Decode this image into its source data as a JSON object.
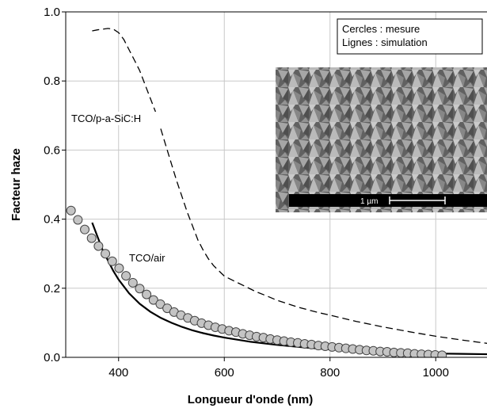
{
  "chart_data": {
    "type": "line",
    "xlabel": "Longueur d'onde (nm)",
    "ylabel": "Facteur haze",
    "xlim": [
      300,
      1100
    ],
    "ylim": [
      0,
      1.0
    ],
    "x_ticks": [
      400,
      600,
      800,
      1000
    ],
    "y_ticks": [
      0.0,
      0.2,
      0.4,
      0.6,
      0.8,
      1.0
    ],
    "x_tick_labels": [
      "400",
      "600",
      "800",
      "1000"
    ],
    "y_tick_labels": [
      "0.0",
      "0.2",
      "0.4",
      "0.6",
      "0.8",
      "1.0"
    ],
    "grid": true,
    "legend": {
      "placement": "top-right",
      "lines": [
        "Cercles : mesure",
        "Lignes : simulation"
      ]
    },
    "annotations": [
      "TCO/p-a-SiC:H",
      "TCO/air"
    ],
    "inset": {
      "type": "SEM micrograph",
      "scale_bar": "1 µm"
    },
    "series": [
      {
        "style": "dashed",
        "label": "TCO/p-a-SiC:H",
        "x": [
          350,
          360,
          370,
          380,
          390,
          400,
          410,
          420,
          430,
          440,
          450,
          460,
          470,
          480,
          490,
          500,
          510,
          520,
          530,
          540,
          550,
          560,
          570,
          580,
          590,
          600,
          620,
          640,
          660,
          680,
          700,
          720,
          740,
          760,
          780,
          800,
          850,
          900,
          950,
          1000,
          1050,
          1100
        ],
        "y": [
          0.945,
          0.948,
          0.95,
          0.952,
          0.95,
          0.94,
          0.92,
          0.89,
          0.86,
          0.83,
          0.79,
          0.75,
          0.71,
          0.66,
          0.61,
          0.56,
          0.51,
          0.465,
          0.42,
          0.38,
          0.34,
          0.31,
          0.285,
          0.265,
          0.25,
          0.235,
          0.22,
          0.205,
          0.19,
          0.178,
          0.165,
          0.155,
          0.145,
          0.137,
          0.129,
          0.122,
          0.104,
          0.088,
          0.074,
          0.061,
          0.05,
          0.04
        ]
      },
      {
        "style": "solid",
        "label": "TCO/air",
        "x": [
          350,
          360,
          370,
          380,
          390,
          400,
          420,
          440,
          460,
          480,
          500,
          520,
          540,
          560,
          580,
          600,
          650,
          700,
          750,
          800,
          850,
          900,
          950,
          1000,
          1050,
          1100
        ],
        "y": [
          0.39,
          0.35,
          0.31,
          0.28,
          0.25,
          0.225,
          0.185,
          0.155,
          0.132,
          0.114,
          0.1,
          0.088,
          0.078,
          0.07,
          0.063,
          0.057,
          0.045,
          0.036,
          0.029,
          0.023,
          0.019,
          0.016,
          0.013,
          0.011,
          0.01,
          0.009
        ]
      },
      {
        "style": "circles",
        "label": "mesure",
        "x": [
          310,
          323,
          336,
          349,
          362,
          375,
          388,
          401,
          414,
          427,
          440,
          453,
          466,
          479,
          492,
          505,
          518,
          531,
          544,
          557,
          570,
          583,
          596,
          609,
          622,
          635,
          648,
          661,
          674,
          687,
          700,
          713,
          726,
          739,
          752,
          765,
          778,
          791,
          804,
          817,
          830,
          843,
          856,
          869,
          882,
          895,
          908,
          921,
          934,
          947,
          960,
          973,
          986,
          999,
          1012
        ],
        "y": [
          0.425,
          0.398,
          0.37,
          0.345,
          0.322,
          0.3,
          0.278,
          0.258,
          0.236,
          0.216,
          0.199,
          0.182,
          0.166,
          0.154,
          0.142,
          0.131,
          0.122,
          0.114,
          0.106,
          0.099,
          0.093,
          0.087,
          0.082,
          0.077,
          0.073,
          0.068,
          0.064,
          0.06,
          0.057,
          0.053,
          0.05,
          0.047,
          0.044,
          0.042,
          0.039,
          0.037,
          0.034,
          0.032,
          0.03,
          0.028,
          0.026,
          0.024,
          0.022,
          0.02,
          0.019,
          0.017,
          0.016,
          0.014,
          0.013,
          0.012,
          0.01,
          0.009,
          0.008,
          0.007,
          0.006
        ]
      }
    ]
  }
}
